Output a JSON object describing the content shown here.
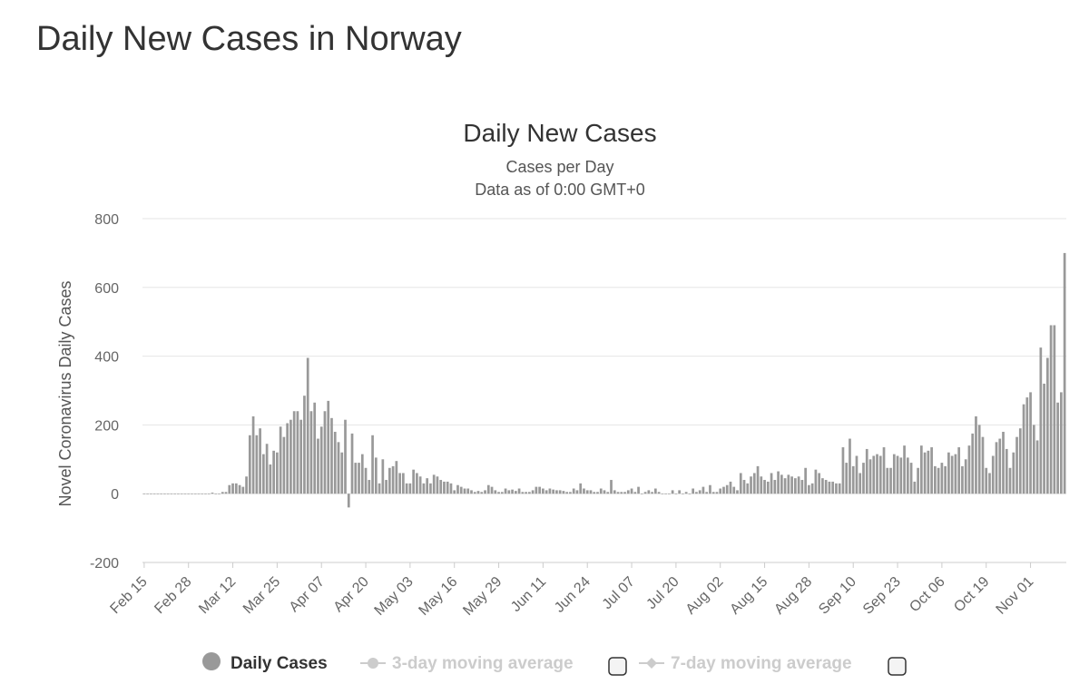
{
  "page": {
    "title": "Daily New Cases in Norway"
  },
  "chart_data": {
    "type": "bar",
    "title": "Daily New Cases",
    "subtitle_lines": [
      "Cases per Day",
      "Data as of 0:00 GMT+0"
    ],
    "xlabel": "",
    "ylabel": "Novel Coronavirus Daily Cases",
    "ylim": [
      -200,
      800
    ],
    "yticks": [
      800,
      600,
      400,
      200,
      0,
      -200
    ],
    "grid": true,
    "bar_color": "#999999",
    "start_date": "Feb 15",
    "x_ticks": [
      "Feb 15",
      "Feb 28",
      "Mar 12",
      "Mar 25",
      "Apr 07",
      "Apr 20",
      "May 03",
      "May 16",
      "May 29",
      "Jun 11",
      "Jun 24",
      "Jul 07",
      "Jul 20",
      "Aug 02",
      "Aug 15",
      "Aug 28",
      "Sep 10",
      "Sep 23",
      "Oct 06",
      "Oct 19",
      "Nov 01"
    ],
    "series": [
      {
        "name": "Daily Cases",
        "values": [
          0,
          0,
          0,
          0,
          0,
          0,
          0,
          0,
          0,
          0,
          0,
          0,
          0,
          0,
          0,
          0,
          0,
          0,
          0,
          0,
          3,
          0,
          0,
          5,
          5,
          25,
          30,
          30,
          25,
          20,
          50,
          170,
          225,
          170,
          190,
          115,
          145,
          85,
          125,
          120,
          195,
          165,
          205,
          215,
          240,
          240,
          215,
          285,
          395,
          240,
          265,
          160,
          195,
          240,
          270,
          220,
          180,
          150,
          120,
          215,
          -40,
          175,
          90,
          90,
          115,
          75,
          40,
          170,
          105,
          30,
          100,
          40,
          75,
          80,
          95,
          60,
          60,
          30,
          30,
          70,
          60,
          50,
          30,
          45,
          30,
          55,
          50,
          40,
          35,
          35,
          30,
          10,
          25,
          20,
          15,
          15,
          10,
          5,
          8,
          5,
          10,
          25,
          20,
          10,
          5,
          5,
          15,
          10,
          12,
          8,
          15,
          5,
          5,
          5,
          10,
          20,
          20,
          15,
          10,
          15,
          12,
          10,
          10,
          8,
          5,
          5,
          15,
          10,
          30,
          15,
          10,
          10,
          5,
          5,
          15,
          10,
          5,
          40,
          10,
          5,
          5,
          5,
          10,
          15,
          5,
          20,
          0,
          5,
          10,
          5,
          15,
          5,
          0,
          0,
          0,
          10,
          0,
          10,
          0,
          5,
          0,
          15,
          5,
          10,
          20,
          5,
          25,
          5,
          5,
          15,
          20,
          25,
          35,
          20,
          10,
          60,
          40,
          30,
          50,
          60,
          80,
          50,
          40,
          35,
          60,
          40,
          65,
          55,
          45,
          55,
          50,
          45,
          50,
          40,
          75,
          25,
          30,
          70,
          60,
          45,
          40,
          35,
          35,
          30,
          30,
          135,
          90,
          160,
          80,
          110,
          60,
          90,
          130,
          100,
          110,
          115,
          110,
          135,
          75,
          75,
          115,
          110,
          105,
          140,
          105,
          90,
          35,
          75,
          140,
          120,
          125,
          135,
          80,
          75,
          90,
          80,
          120,
          110,
          115,
          135,
          80,
          100,
          140,
          175,
          225,
          200,
          165,
          75,
          60,
          110,
          150,
          160,
          180,
          130,
          75,
          120,
          165,
          190,
          260,
          280,
          295,
          200,
          155,
          425,
          320,
          395,
          490,
          490,
          265,
          295,
          700
        ]
      },
      {
        "name": "3-day moving average"
      },
      {
        "name": "7-day moving average"
      }
    ],
    "legend_position": "bottom"
  }
}
